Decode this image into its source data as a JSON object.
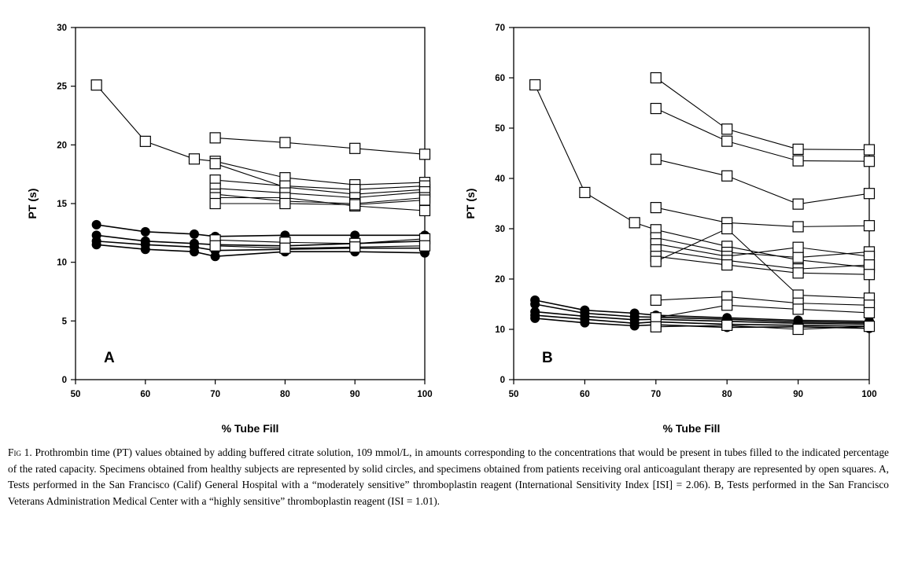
{
  "chart_data": [
    {
      "type": "line",
      "panel_label": "A",
      "xlabel": "% Tube Fill",
      "ylabel": "PT (s)",
      "xlim": [
        50,
        100
      ],
      "ylim": [
        0,
        30
      ],
      "xticks": [
        50,
        60,
        70,
        80,
        90,
        100
      ],
      "yticks": [
        0,
        5,
        10,
        15,
        20,
        25,
        30
      ],
      "grid": false,
      "series": [
        {
          "marker": "square",
          "x": [
            53,
            60,
            67,
            70,
            80,
            90,
            100
          ],
          "y": [
            25.1,
            20.3,
            18.8,
            18.6,
            17.2,
            16.6,
            16.8
          ]
        },
        {
          "marker": "square",
          "x": [
            70,
            80,
            90,
            100
          ],
          "y": [
            20.6,
            20.2,
            19.7,
            19.2
          ]
        },
        {
          "marker": "square",
          "x": [
            70,
            80,
            90,
            100
          ],
          "y": [
            18.4,
            16.4,
            15.8,
            16.2
          ]
        },
        {
          "marker": "square",
          "x": [
            70,
            80,
            90,
            100
          ],
          "y": [
            17.0,
            16.5,
            16.2,
            16.5
          ]
        },
        {
          "marker": "square",
          "x": [
            70,
            80,
            90,
            100
          ],
          "y": [
            16.3,
            15.9,
            15.5,
            16.0
          ]
        },
        {
          "marker": "square",
          "x": [
            70,
            80,
            90,
            100
          ],
          "y": [
            15.8,
            15.2,
            15.0,
            15.5
          ]
        },
        {
          "marker": "square",
          "x": [
            70,
            80,
            90,
            100
          ],
          "y": [
            15.5,
            15.5,
            14.8,
            14.4
          ]
        },
        {
          "marker": "square",
          "x": [
            70,
            80,
            90,
            100
          ],
          "y": [
            15.0,
            15.0,
            14.9,
            15.3
          ]
        },
        {
          "marker": "square",
          "x": [
            70,
            80,
            90,
            100
          ],
          "y": [
            11.9,
            11.7,
            11.6,
            12.0
          ]
        },
        {
          "marker": "square",
          "x": [
            70,
            80,
            90,
            100
          ],
          "y": [
            11.4,
            11.2,
            11.3,
            11.4
          ]
        },
        {
          "marker": "circle",
          "x": [
            53,
            60,
            67,
            70,
            80,
            90,
            100
          ],
          "y": [
            13.2,
            12.6,
            12.4,
            12.2,
            12.3,
            12.3,
            12.3
          ]
        },
        {
          "marker": "circle",
          "x": [
            53,
            60,
            67,
            70,
            80,
            90,
            100
          ],
          "y": [
            12.3,
            11.8,
            11.6,
            11.5,
            11.4,
            11.6,
            11.8
          ]
        },
        {
          "marker": "circle",
          "x": [
            53,
            60,
            67,
            70,
            80,
            90,
            100
          ],
          "y": [
            11.8,
            11.5,
            11.3,
            11.0,
            11.1,
            11.2,
            11.2
          ]
        },
        {
          "marker": "circle",
          "x": [
            53,
            60,
            67,
            70,
            80,
            90,
            100
          ],
          "y": [
            11.5,
            11.1,
            10.9,
            10.5,
            10.9,
            10.9,
            10.8
          ]
        }
      ]
    },
    {
      "type": "line",
      "panel_label": "B",
      "xlabel": "% Tube Fill",
      "ylabel": "PT (s)",
      "xlim": [
        50,
        100
      ],
      "ylim": [
        0,
        70
      ],
      "xticks": [
        50,
        60,
        70,
        80,
        90,
        100
      ],
      "yticks": [
        0,
        10,
        20,
        30,
        40,
        50,
        60,
        70
      ],
      "grid": false,
      "series": [
        {
          "marker": "square",
          "x": [
            53,
            60,
            67,
            70,
            80,
            90,
            100
          ],
          "y": [
            58.6,
            37.2,
            31.2,
            29.8,
            26.5,
            23.8,
            22.3
          ]
        },
        {
          "marker": "square",
          "x": [
            70,
            80,
            90,
            100
          ],
          "y": [
            60.0,
            49.8,
            45.8,
            45.7
          ]
        },
        {
          "marker": "square",
          "x": [
            70,
            80,
            90,
            100
          ],
          "y": [
            53.9,
            47.4,
            43.5,
            43.4
          ]
        },
        {
          "marker": "square",
          "x": [
            70,
            80,
            90,
            100
          ],
          "y": [
            43.8,
            40.5,
            34.9,
            37.0
          ]
        },
        {
          "marker": "square",
          "x": [
            70,
            80,
            90,
            100
          ],
          "y": [
            34.2,
            31.2,
            30.4,
            30.6
          ]
        },
        {
          "marker": "square",
          "x": [
            70,
            80,
            90,
            100
          ],
          "y": [
            28.2,
            25.3,
            24.3,
            25.4
          ]
        },
        {
          "marker": "square",
          "x": [
            70,
            80,
            90,
            100
          ],
          "y": [
            27.0,
            24.5,
            26.3,
            24.5
          ]
        },
        {
          "marker": "square",
          "x": [
            70,
            80,
            90,
            100
          ],
          "y": [
            25.8,
            23.7,
            22.0,
            22.8
          ]
        },
        {
          "marker": "square",
          "x": [
            70,
            80,
            90,
            100
          ],
          "y": [
            24.5,
            22.8,
            21.2,
            20.9
          ]
        },
        {
          "marker": "square",
          "x": [
            70,
            80,
            90,
            100
          ],
          "y": [
            23.5,
            30.0,
            16.8,
            16.2
          ]
        },
        {
          "marker": "square",
          "x": [
            70,
            80,
            90,
            100
          ],
          "y": [
            15.8,
            16.5,
            15.2,
            14.8
          ]
        },
        {
          "marker": "square",
          "x": [
            70,
            80,
            90,
            100
          ],
          "y": [
            12.3,
            14.8,
            14.0,
            13.3
          ]
        },
        {
          "marker": "square",
          "x": [
            70,
            80,
            90,
            100
          ],
          "y": [
            10.5,
            10.8,
            10.0,
            10.6
          ]
        },
        {
          "marker": "circle",
          "x": [
            53,
            60,
            67,
            70,
            80,
            90,
            100
          ],
          "y": [
            15.8,
            13.8,
            13.2,
            12.8,
            12.3,
            11.8,
            11.6
          ]
        },
        {
          "marker": "circle",
          "x": [
            53,
            60,
            67,
            70,
            80,
            90,
            100
          ],
          "y": [
            15.0,
            13.2,
            12.5,
            12.4,
            12.0,
            11.5,
            11.3
          ]
        },
        {
          "marker": "circle",
          "x": [
            53,
            60,
            67,
            70,
            80,
            90,
            100
          ],
          "y": [
            13.5,
            12.6,
            11.9,
            12.0,
            11.6,
            11.2,
            11.0
          ]
        },
        {
          "marker": "circle",
          "x": [
            53,
            60,
            67,
            70,
            80,
            90,
            100
          ],
          "y": [
            12.8,
            12.0,
            11.2,
            11.5,
            11.0,
            10.8,
            10.6
          ]
        },
        {
          "marker": "circle",
          "x": [
            53,
            60,
            67,
            70,
            80,
            90,
            100
          ],
          "y": [
            12.2,
            11.3,
            10.7,
            10.9,
            10.4,
            10.5,
            10.2
          ]
        }
      ]
    }
  ],
  "caption": {
    "label": "Fig 1.",
    "text": "Prothrombin time (PT) values obtained by adding buffered citrate solution, 109 mmol/L, in amounts corresponding to the concentrations that would be present in tubes filled to the indicated percentage of the rated capacity. Specimens obtained from healthy subjects are represented by solid circles, and specimens obtained from patients receiving oral anticoagulant therapy are represented by open squares. A, Tests performed in the San Francisco (Calif) General Hospital with a “moderately sensitive” thromboplastin reagent (International Sensitivity Index [ISI] = 2.06). B, Tests performed in the San Francisco Veterans Administration Medical Center with a “highly sensitive” thromboplastin reagent (ISI = 1.01)."
  }
}
